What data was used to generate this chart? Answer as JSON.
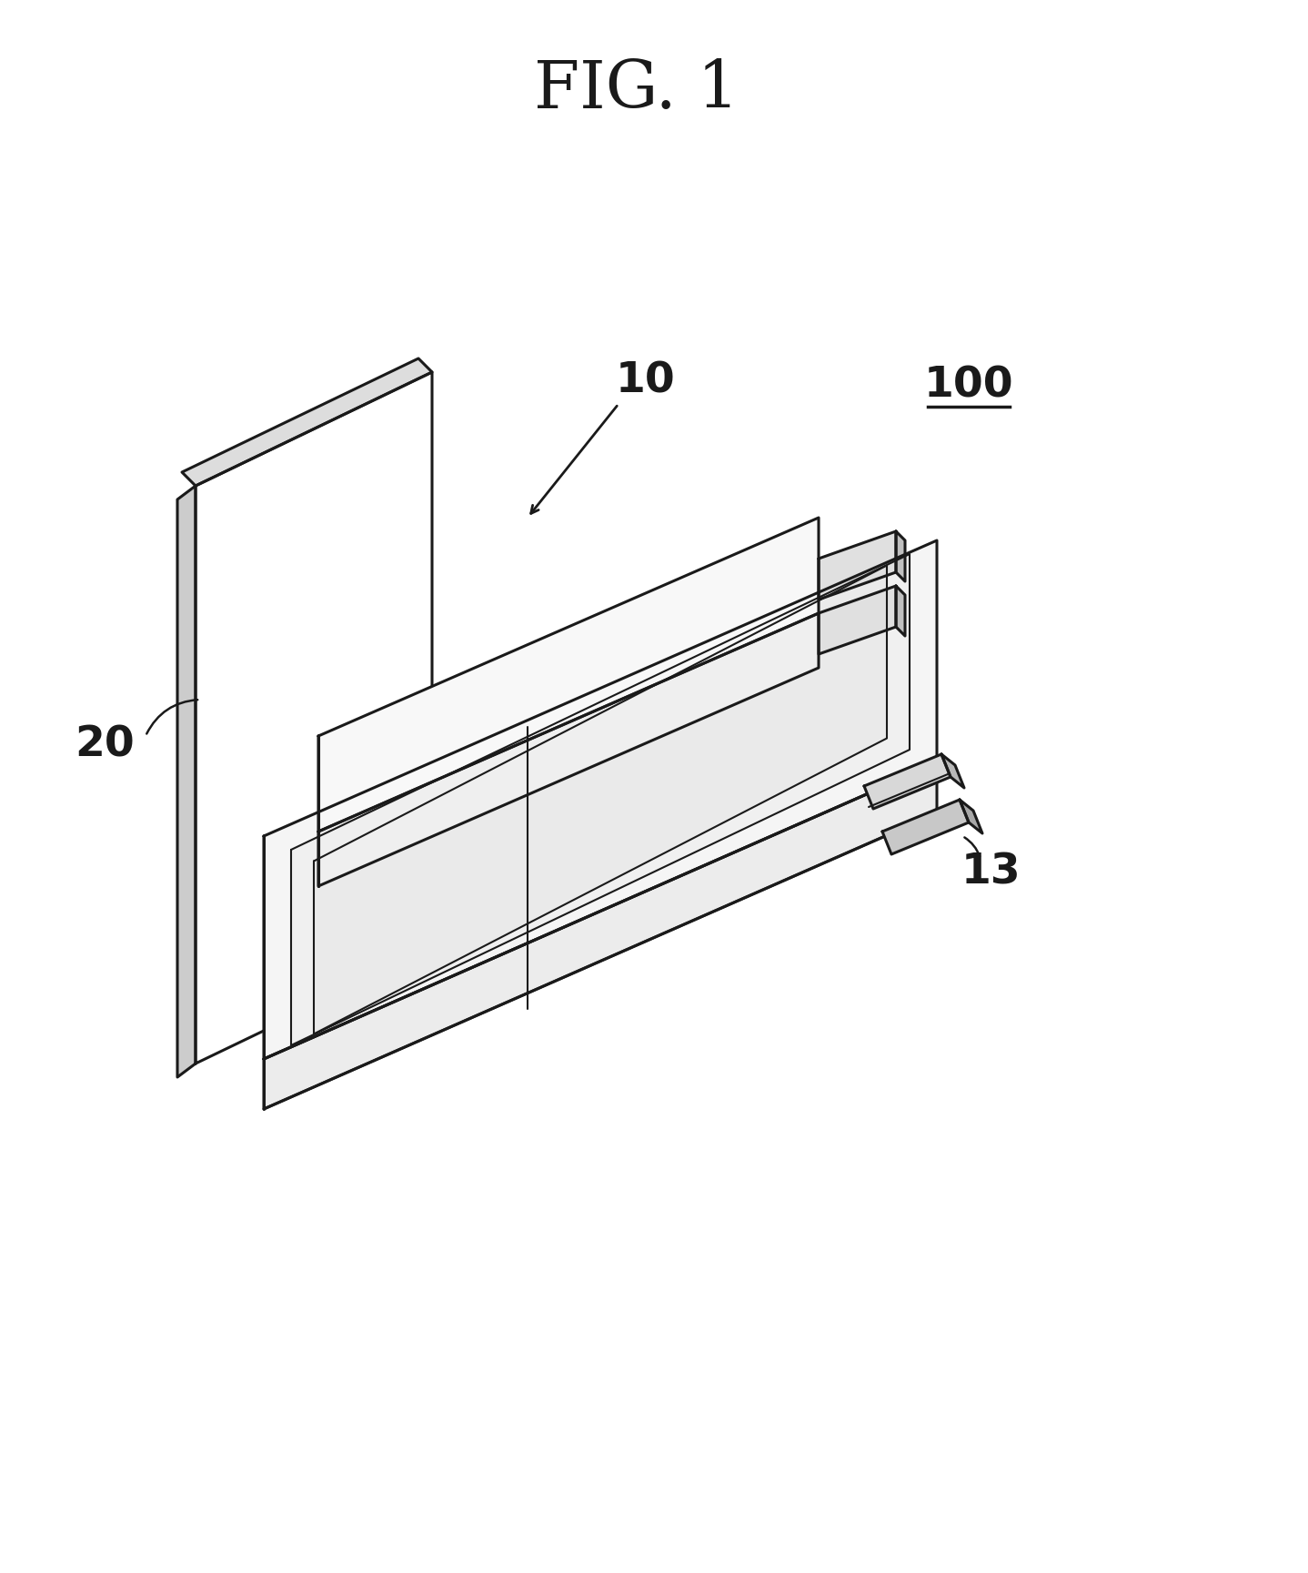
{
  "title": "FIG. 1",
  "background_color": "#ffffff",
  "line_color": "#1a1a1a",
  "label_100": "100",
  "label_10": "10",
  "label_20": "20",
  "label_13": "13",
  "title_fontsize": 52,
  "label_fontsize": 34
}
